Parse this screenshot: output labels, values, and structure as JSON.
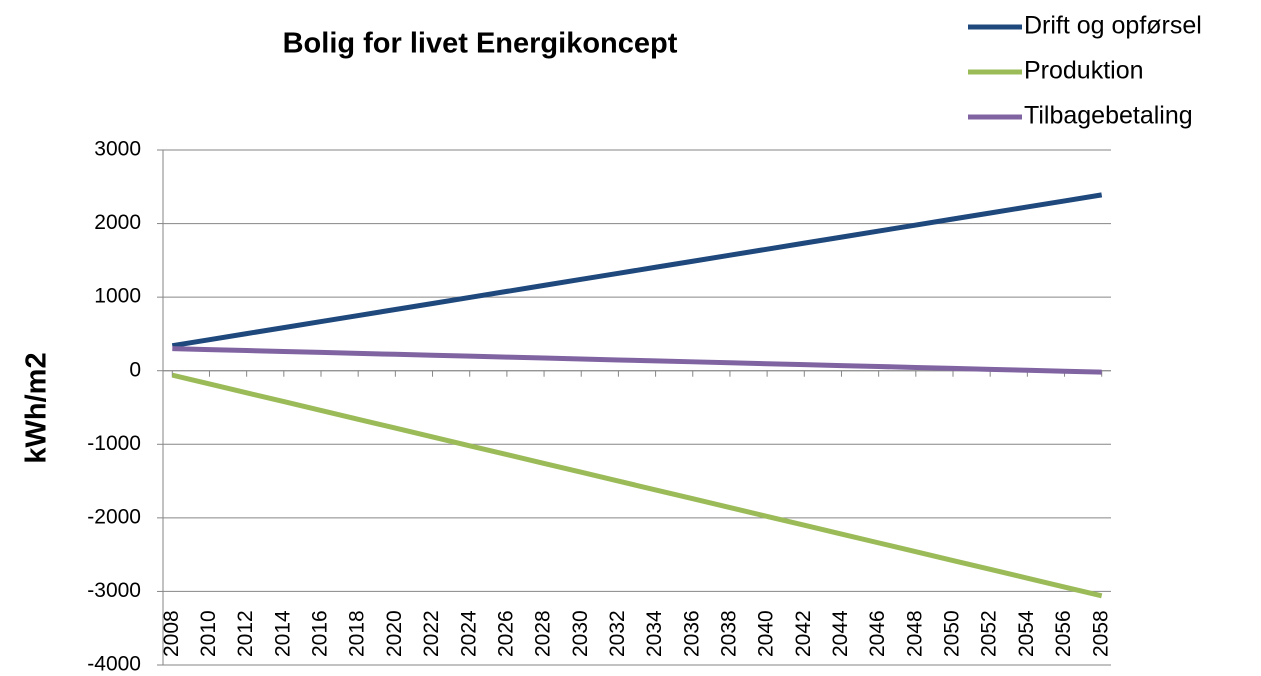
{
  "chart_data": {
    "type": "line",
    "title": "Bolig for livet  Energikoncept",
    "y_label": "kWh/m2",
    "x": [
      2008,
      2010,
      2012,
      2014,
      2016,
      2018,
      2020,
      2022,
      2024,
      2026,
      2028,
      2030,
      2032,
      2034,
      2036,
      2038,
      2040,
      2042,
      2044,
      2046,
      2048,
      2050,
      2052,
      2054,
      2056,
      2058
    ],
    "series": [
      {
        "name": "Drift og opførsel",
        "color": "#1f497d",
        "values": [
          340,
          422,
          504,
          586,
          668,
          750,
          832,
          914,
          996,
          1078,
          1160,
          1242,
          1324,
          1406,
          1488,
          1570,
          1652,
          1734,
          1816,
          1898,
          1980,
          2062,
          2144,
          2226,
          2308,
          2390
        ]
      },
      {
        "name": "Produktion",
        "color": "#9bbb59",
        "values": [
          -60,
          -180,
          -300,
          -420,
          -540,
          -660,
          -780,
          -900,
          -1020,
          -1140,
          -1260,
          -1380,
          -1500,
          -1620,
          -1740,
          -1860,
          -1980,
          -2100,
          -2220,
          -2340,
          -2460,
          -2580,
          -2700,
          -2820,
          -2940,
          -3060
        ]
      },
      {
        "name": "Tilbagebetaling",
        "color": "#8064a2",
        "values": [
          300,
          287,
          274,
          262,
          249,
          236,
          223,
          210,
          198,
          185,
          172,
          159,
          146,
          134,
          121,
          108,
          95,
          82,
          70,
          57,
          44,
          31,
          18,
          6,
          -7,
          -20
        ]
      }
    ],
    "xlim": [
      2007.5,
      2058.5
    ],
    "xticks": [
      2008,
      2010,
      2012,
      2014,
      2016,
      2018,
      2020,
      2022,
      2024,
      2026,
      2028,
      2030,
      2032,
      2034,
      2036,
      2038,
      2040,
      2042,
      2044,
      2046,
      2048,
      2050,
      2052,
      2054,
      2056,
      2058
    ],
    "ylim": [
      -4000,
      3000
    ],
    "yticks": [
      -4000,
      -3000,
      -2000,
      -1000,
      0,
      1000,
      2000,
      3000
    ],
    "grid": true,
    "legend": "top-right"
  }
}
